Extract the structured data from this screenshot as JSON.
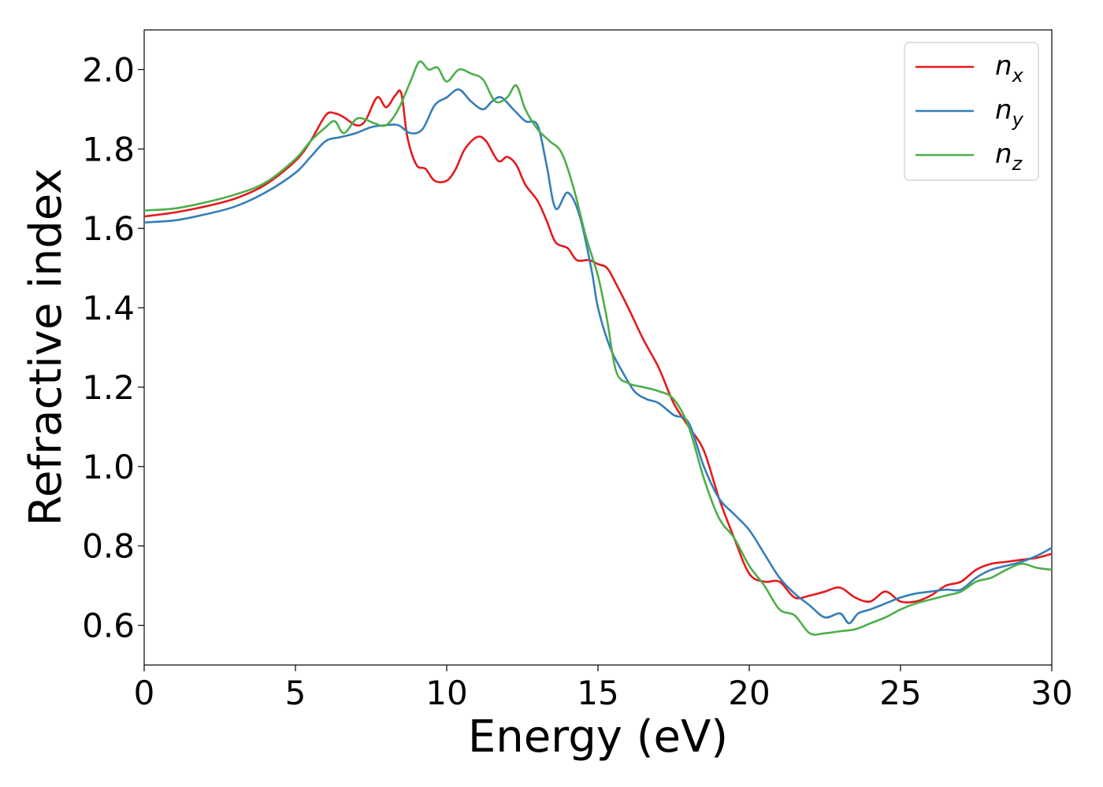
{
  "chart_data": {
    "type": "line",
    "title": "",
    "xlabel": "Energy (eV)",
    "ylabel": "Refractive index",
    "xlim": [
      0,
      30
    ],
    "ylim": [
      0.5,
      2.1
    ],
    "xticks": [
      0,
      5,
      10,
      15,
      20,
      25,
      30
    ],
    "xtick_labels": [
      "0",
      "5",
      "10",
      "15",
      "20",
      "25",
      "30"
    ],
    "yticks": [
      0.6,
      0.8,
      1.0,
      1.2,
      1.4,
      1.6,
      1.8,
      2.0
    ],
    "ytick_labels": [
      "0.6",
      "0.8",
      "1.0",
      "1.2",
      "1.4",
      "1.6",
      "1.8",
      "2.0"
    ],
    "grid": false,
    "legend_position": "top-right",
    "series": [
      {
        "name": "n_x",
        "label_main": "n",
        "label_sub": "x",
        "color": "#e41a1c",
        "x": [
          0,
          1,
          2,
          3,
          4,
          5,
          5.5,
          6,
          6.3,
          6.6,
          7,
          7.3,
          7.7,
          8.0,
          8.3,
          8.5,
          8.7,
          9.0,
          9.3,
          9.6,
          10.0,
          10.3,
          10.6,
          11.0,
          11.3,
          11.7,
          12.0,
          12.3,
          12.6,
          13.0,
          13.3,
          13.6,
          14.0,
          14.3,
          14.7,
          15.0,
          15.3,
          15.6,
          16.0,
          16.5,
          17.0,
          17.5,
          18.0,
          18.5,
          19.0,
          19.5,
          20.0,
          20.5,
          21.0,
          21.5,
          22.0,
          22.5,
          23.0,
          23.5,
          24.0,
          24.5,
          25.0,
          25.5,
          26.0,
          26.5,
          27.0,
          27.5,
          28.0,
          28.5,
          29.0,
          29.5,
          30.0
        ],
        "y": [
          1.63,
          1.64,
          1.655,
          1.675,
          1.71,
          1.77,
          1.82,
          1.885,
          1.89,
          1.88,
          1.86,
          1.87,
          1.93,
          1.905,
          1.935,
          1.94,
          1.83,
          1.76,
          1.75,
          1.72,
          1.72,
          1.75,
          1.8,
          1.83,
          1.82,
          1.77,
          1.78,
          1.76,
          1.71,
          1.67,
          1.62,
          1.565,
          1.55,
          1.52,
          1.52,
          1.51,
          1.5,
          1.46,
          1.4,
          1.32,
          1.25,
          1.16,
          1.1,
          1.04,
          0.92,
          0.82,
          0.73,
          0.71,
          0.71,
          0.67,
          0.675,
          0.685,
          0.695,
          0.67,
          0.66,
          0.685,
          0.66,
          0.66,
          0.675,
          0.7,
          0.71,
          0.74,
          0.755,
          0.76,
          0.765,
          0.77,
          0.78
        ]
      },
      {
        "name": "n_y",
        "label_main": "n",
        "label_sub": "y",
        "color": "#377eb8",
        "x": [
          0,
          1,
          2,
          3,
          4,
          5,
          5.5,
          6,
          6.5,
          7,
          7.5,
          8.0,
          8.4,
          8.8,
          9.2,
          9.6,
          10.0,
          10.4,
          10.8,
          11.2,
          11.5,
          11.8,
          12.2,
          12.6,
          13.0,
          13.3,
          13.6,
          14.0,
          14.4,
          14.8,
          15.0,
          15.4,
          15.8,
          16.2,
          16.6,
          17.0,
          17.5,
          18.0,
          18.5,
          19.0,
          19.5,
          20.0,
          20.5,
          21.0,
          21.5,
          22.0,
          22.5,
          23.0,
          23.3,
          23.6,
          24.0,
          24.5,
          25.0,
          25.5,
          26.0,
          26.5,
          27.0,
          27.5,
          28.0,
          28.5,
          29.0,
          29.5,
          30.0
        ],
        "y": [
          1.615,
          1.62,
          1.635,
          1.655,
          1.69,
          1.74,
          1.78,
          1.82,
          1.83,
          1.84,
          1.855,
          1.86,
          1.86,
          1.84,
          1.85,
          1.91,
          1.93,
          1.95,
          1.92,
          1.9,
          1.92,
          1.93,
          1.9,
          1.87,
          1.86,
          1.76,
          1.65,
          1.69,
          1.63,
          1.49,
          1.4,
          1.3,
          1.24,
          1.19,
          1.17,
          1.16,
          1.13,
          1.11,
          1.0,
          0.92,
          0.88,
          0.84,
          0.78,
          0.72,
          0.68,
          0.65,
          0.62,
          0.63,
          0.605,
          0.63,
          0.64,
          0.655,
          0.67,
          0.68,
          0.685,
          0.69,
          0.69,
          0.72,
          0.74,
          0.75,
          0.76,
          0.775,
          0.795
        ]
      },
      {
        "name": "n_z",
        "label_main": "n",
        "label_sub": "z",
        "color": "#4daf4a",
        "x": [
          0,
          1,
          2,
          3,
          4,
          5,
          5.5,
          6,
          6.3,
          6.6,
          7.0,
          7.3,
          7.6,
          8.0,
          8.4,
          8.8,
          9.1,
          9.4,
          9.7,
          10.0,
          10.4,
          10.8,
          11.2,
          11.6,
          12.0,
          12.3,
          12.6,
          13.0,
          13.4,
          13.8,
          14.2,
          14.6,
          15.0,
          15.3,
          15.6,
          16.0,
          16.5,
          17.0,
          17.5,
          18.0,
          18.5,
          19.0,
          19.5,
          20.0,
          20.5,
          21.0,
          21.5,
          22.0,
          22.5,
          23.0,
          23.5,
          24.0,
          24.5,
          25.0,
          25.5,
          26.0,
          26.5,
          27.0,
          27.5,
          28.0,
          28.5,
          29.0,
          29.5,
          30.0
        ],
        "y": [
          1.645,
          1.65,
          1.665,
          1.685,
          1.715,
          1.775,
          1.82,
          1.855,
          1.87,
          1.84,
          1.875,
          1.875,
          1.865,
          1.86,
          1.9,
          1.97,
          2.02,
          2.0,
          2.005,
          1.97,
          2.0,
          1.99,
          1.975,
          1.92,
          1.93,
          1.96,
          1.9,
          1.85,
          1.82,
          1.79,
          1.7,
          1.58,
          1.48,
          1.37,
          1.24,
          1.21,
          1.2,
          1.19,
          1.17,
          1.1,
          0.97,
          0.87,
          0.82,
          0.75,
          0.7,
          0.64,
          0.625,
          0.58,
          0.58,
          0.585,
          0.59,
          0.605,
          0.62,
          0.64,
          0.655,
          0.665,
          0.675,
          0.685,
          0.71,
          0.72,
          0.74,
          0.755,
          0.745,
          0.74
        ]
      }
    ]
  }
}
